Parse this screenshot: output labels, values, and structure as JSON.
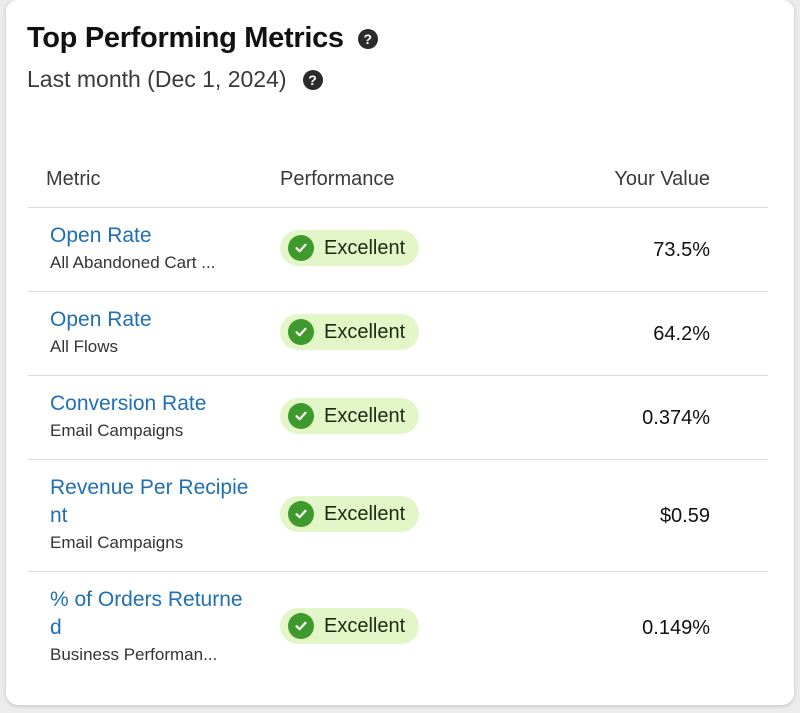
{
  "header": {
    "title": "Top Performing Metrics",
    "subtitle": "Last month (Dec 1, 2024)"
  },
  "table": {
    "columns": [
      "Metric",
      "Performance",
      "Your Value"
    ],
    "rows": [
      {
        "metric": "Open Rate",
        "source": "All Abandoned Cart ...",
        "performance": "Excellent",
        "value": "73.5%"
      },
      {
        "metric": "Open Rate",
        "source": "All Flows",
        "performance": "Excellent",
        "value": "64.2%"
      },
      {
        "metric": "Conversion Rate",
        "source": "Email Campaigns",
        "performance": "Excellent",
        "value": "0.374%"
      },
      {
        "metric": "Revenue Per Recipient",
        "source": "Email Campaigns",
        "performance": "Excellent",
        "value": "$0.59"
      },
      {
        "metric": "% of Orders Returned",
        "source": "Business Performan...",
        "performance": "Excellent",
        "value": "0.149%"
      }
    ]
  },
  "icons": {
    "help": "help-circle-icon",
    "status": "check-circle-icon"
  },
  "colors": {
    "link": "#1f6fb5",
    "badge_bg": "#e3f6c8",
    "check": "#3e9a2c"
  }
}
